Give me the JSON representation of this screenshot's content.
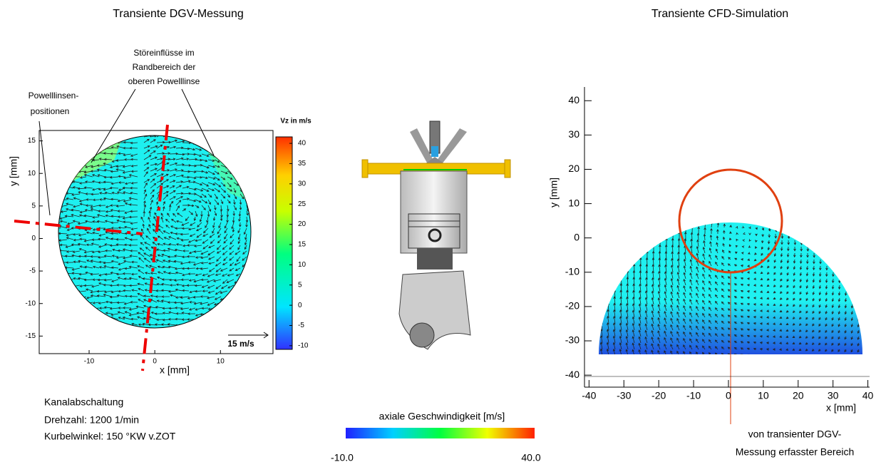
{
  "left_plot": {
    "title": "Transiente DGV-Messung",
    "annotation_top": [
      "Störeinflüsse im",
      "Randbereich der",
      "oberen Powelllinse"
    ],
    "annotation_left": [
      "Powelllinsen-",
      "positionen"
    ],
    "x_label": "x   [mm]",
    "y_label": "y  [mm]",
    "xlim": [
      -17.6,
      18
    ],
    "ylim": [
      -17.7,
      16.6
    ],
    "xticks": [
      -10,
      0,
      10
    ],
    "yticks": [
      -15,
      -10,
      -5,
      0,
      5,
      10,
      15
    ],
    "scale_label": "15 m/s",
    "colorbar": {
      "title": "Vz in m/s",
      "lim": [
        -10.9,
        41.6
      ],
      "ticks": [
        40,
        35,
        30,
        25,
        20,
        15,
        10,
        5,
        0,
        -5,
        -10
      ]
    }
  },
  "conditions": [
    "Kanalabschaltung",
    "Drehzahl: 1200 1/min",
    "Kurbelwinkel: 150 °KW v.ZOT"
  ],
  "engine_colorbar": {
    "label": "axiale Geschwindigkeit   [m/s]",
    "min": "-10.0",
    "max": "40.0"
  },
  "right_plot": {
    "title": "Transiente CFD-Simulation",
    "x_label": "x   [mm]",
    "y_label": "y  [mm]",
    "xlim": [
      -41.3,
      40.5
    ],
    "ylim": [
      -43.5,
      44
    ],
    "xticks": [
      -40,
      -30,
      -20,
      -10,
      0,
      10,
      20,
      30,
      40
    ],
    "yticks": [
      -40,
      -30,
      -20,
      -10,
      0,
      10,
      20,
      30,
      40
    ],
    "annotation": [
      "von transienter DGV-",
      "Messung erfasster Bereich"
    ]
  }
}
